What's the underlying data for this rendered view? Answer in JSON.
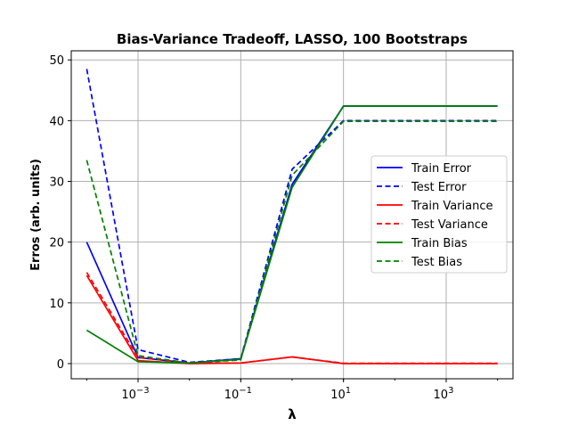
{
  "chart_data": {
    "type": "line",
    "title": "Bias-Variance Tradeoff, LASSO, 100 Bootstraps",
    "xlabel": "λ",
    "ylabel": "Erros (arb. units)",
    "xscale": "log",
    "xlim": [
      5e-05,
      20000
    ],
    "ylim": [
      -2.5,
      51.5
    ],
    "grid": true,
    "legend_position": "center-right",
    "x": [
      0.0001,
      0.001,
      0.01,
      0.1,
      1,
      10,
      10000
    ],
    "x_ticks": [
      {
        "label_base": "10",
        "label_exp": "−3",
        "value": 0.001
      },
      {
        "label_base": "10",
        "label_exp": "−1",
        "value": 0.1
      },
      {
        "label_base": "10",
        "label_exp": "1",
        "value": 10
      },
      {
        "label_base": "10",
        "label_exp": "3",
        "value": 1000
      }
    ],
    "y_ticks": [
      {
        "label": "0",
        "value": 0
      },
      {
        "label": "10",
        "value": 10
      },
      {
        "label": "20",
        "value": 20
      },
      {
        "label": "30",
        "value": 30
      },
      {
        "label": "40",
        "value": 40
      },
      {
        "label": "50",
        "value": 50
      }
    ],
    "series": [
      {
        "name": "Train Error",
        "color": "#0000ff",
        "dash": "solid",
        "values": [
          20.0,
          1.0,
          0.1,
          0.8,
          29.5,
          42.4,
          42.4
        ]
      },
      {
        "name": "Test Error",
        "color": "#0000ff",
        "dash": "dashed",
        "values": [
          48.5,
          2.3,
          0.2,
          0.8,
          32.0,
          40.0,
          40.0
        ]
      },
      {
        "name": "Train Variance",
        "color": "#ff0000",
        "dash": "solid",
        "values": [
          14.5,
          0.5,
          0.0,
          0.1,
          1.1,
          0.0,
          0.0
        ]
      },
      {
        "name": "Test Variance",
        "color": "#ff0000",
        "dash": "dashed",
        "values": [
          15.0,
          1.0,
          0.1,
          0.1,
          1.1,
          0.05,
          0.05
        ]
      },
      {
        "name": "Train Bias",
        "color": "#008000",
        "dash": "solid",
        "values": [
          5.5,
          0.3,
          0.1,
          0.7,
          29.0,
          42.4,
          42.4
        ]
      },
      {
        "name": "Test Bias",
        "color": "#008000",
        "dash": "dashed",
        "values": [
          33.5,
          1.3,
          0.1,
          0.6,
          31.0,
          39.9,
          39.9
        ]
      }
    ]
  }
}
